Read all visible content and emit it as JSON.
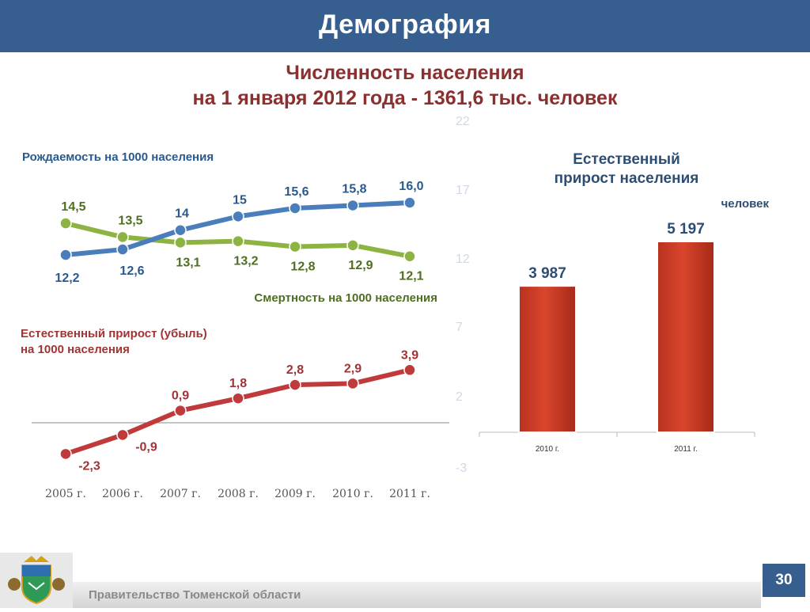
{
  "slide": {
    "title": "Демография",
    "subtitle_line1": "Численность населения",
    "subtitle_line2": "на 1 января 2012 года - 1361,6 тыс. человек",
    "footer": "Правительство Тюменской области",
    "page_number": "30"
  },
  "colors": {
    "header": "#365f8f",
    "birth": "#4a7ebb",
    "death": "#8db442",
    "growth": "#c0393b",
    "bar": "#d9452d"
  },
  "chart_data": [
    {
      "type": "line",
      "categories": [
        "2005 г.",
        "2006 г.",
        "2007 г.",
        "2008 г.",
        "2009 г.",
        "2010 г.",
        "2011 г."
      ],
      "series": [
        {
          "name": "Рождаемость на 1000 населения",
          "values": [
            12.2,
            12.6,
            14,
            15,
            15.6,
            15.8,
            16.0
          ],
          "labels": [
            "12,2",
            "12,6",
            "14",
            "15",
            "15,6",
            "15,8",
            "16,0"
          ]
        },
        {
          "name": "Смертность на 1000 населения",
          "values": [
            14.5,
            13.5,
            13.1,
            13.2,
            12.8,
            12.9,
            12.1
          ],
          "labels": [
            "14,5",
            "13,5",
            "13,1",
            "13,2",
            "12,8",
            "12,9",
            "12,1"
          ]
        }
      ],
      "axis_ticks": [
        "22",
        "17",
        "12",
        "7",
        "2",
        "-3"
      ]
    },
    {
      "type": "line",
      "title": "Естественный прирост (убыль) на 1000 населения",
      "title_line1": "Естественный прирост (убыль)",
      "title_line2": "на 1000 населения",
      "categories": [
        "2005 г.",
        "2006 г.",
        "2007 г.",
        "2008 г.",
        "2009 г.",
        "2010 г.",
        "2011 г."
      ],
      "series": [
        {
          "values": [
            -2.3,
            -0.9,
            0.9,
            1.8,
            2.8,
            2.9,
            3.9
          ],
          "labels": [
            "-2,3",
            "-0,9",
            "0,9",
            "1,8",
            "2,8",
            "2,9",
            "3,9"
          ]
        }
      ]
    },
    {
      "type": "bar",
      "title_line1": "Естественный",
      "title_line2": "прирост населения",
      "unit": "человек",
      "categories": [
        "2010 г.",
        "2011 г."
      ],
      "values": [
        3987,
        5197
      ],
      "labels": [
        "3 987",
        "5 197"
      ],
      "ylim": [
        0,
        5197
      ]
    }
  ]
}
